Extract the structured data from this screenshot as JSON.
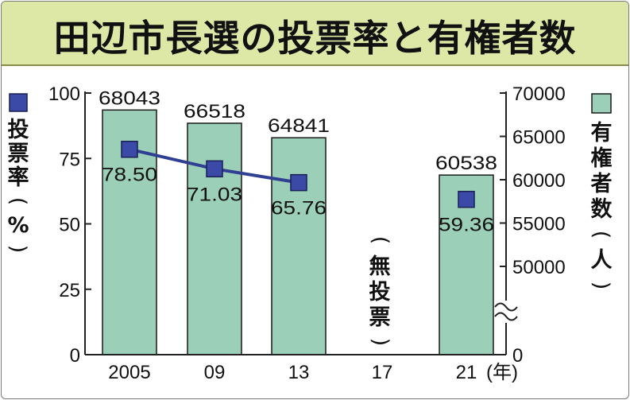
{
  "title": "田辺市長選の投票率と有権者数",
  "chart_data": {
    "type": "bar",
    "categories": [
      "2005",
      "09",
      "13",
      "17",
      "21"
    ],
    "x_unit": "(年)",
    "series": [
      {
        "name": "有権者数（人）",
        "type": "bar",
        "values": [
          68043,
          66518,
          64841,
          null,
          60538
        ]
      },
      {
        "name": "投票率（％）",
        "type": "line",
        "values": [
          78.5,
          71.03,
          65.76,
          null,
          59.36
        ]
      }
    ],
    "value_labels": {
      "turnout": [
        "78.50",
        "71.03",
        "65.76",
        "",
        "59.36"
      ],
      "voters": [
        "68043",
        "66518",
        "64841",
        "",
        "60538"
      ]
    },
    "left_axis": {
      "label": [
        "投",
        "票",
        "率",
        "(",
        "%",
        ")"
      ],
      "ticks": [
        "0",
        "25",
        "50",
        "75",
        "100"
      ],
      "ylim": [
        0,
        100
      ]
    },
    "right_axis": {
      "label": [
        "有",
        "権",
        "者",
        "数",
        "(",
        "人",
        ")"
      ],
      "ticks": [
        "0",
        "50000",
        "55000",
        "60000",
        "65000",
        "70000"
      ],
      "ylim": [
        0,
        70000
      ],
      "axis_break": true
    },
    "annotation": [
      "(",
      "無",
      "投",
      "票",
      ")"
    ],
    "colors": {
      "bar_fill": "#9ccfb8",
      "bar_stroke": "#1a1a1a",
      "line": "#2f3f92",
      "marker": "#3b4aa6",
      "title_bg": "#dde7a6"
    },
    "legend": {
      "turnout_marker": "square",
      "voters_marker": "square"
    }
  }
}
